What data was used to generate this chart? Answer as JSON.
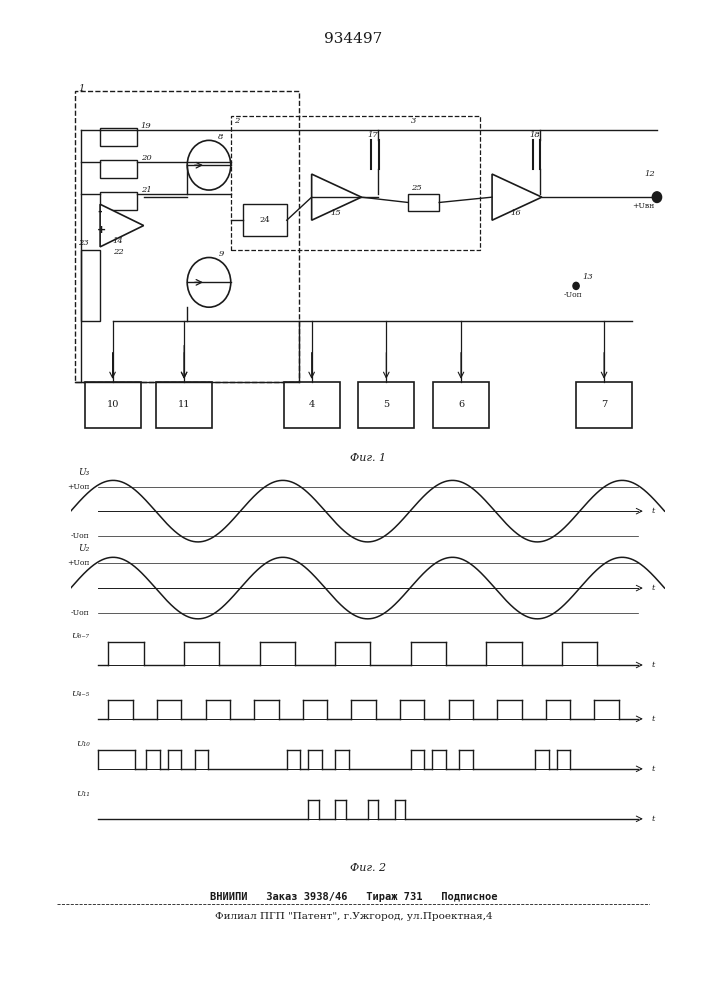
{
  "title": "934497",
  "title_fontsize": 11,
  "bg_color": "#ffffff",
  "line_color": "#1a1a1a",
  "fig1_caption": "Фиг. 1",
  "fig2_caption": "Фиг. 2",
  "footer_line1": "ВНИИПИ   Заказ 3938/46   Тираж 731   Подписное",
  "footer_line2": "Филиал ПГП \"Патент\", г.Ужгород, ул.Проектная,4",
  "block_labels": [
    "10",
    "11",
    "4",
    "5",
    "6",
    "7"
  ],
  "resistor_labels": [
    "19",
    "20",
    "21"
  ],
  "sine1_freq": 3.5,
  "sine2_freq": 3.5
}
